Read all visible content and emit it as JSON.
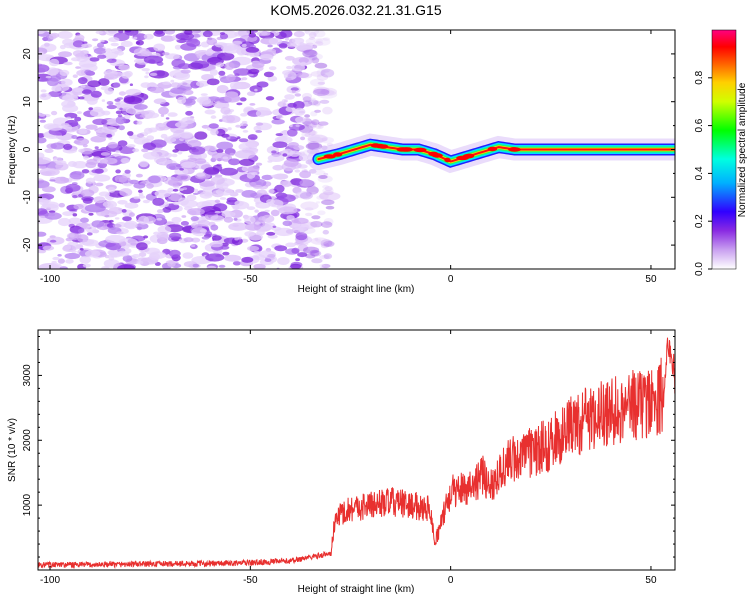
{
  "title": "KOM5.2026.032.21.31.G15",
  "chart_data": [
    {
      "type": "heatmap",
      "xlabel": "Height of straight line (km)",
      "ylabel": "Frequency (Hz)",
      "xlim": [
        -103,
        56
      ],
      "ylim": [
        -25,
        25
      ],
      "x_ticks": [
        -100,
        -50,
        0,
        50
      ],
      "y_ticks": [
        -20,
        -10,
        0,
        10,
        20
      ],
      "colorbar": {
        "label": "Normalized spectral amplitude",
        "range": [
          0.0,
          1.0
        ],
        "ticks": [
          0.0,
          0.2,
          0.4,
          0.6,
          0.8
        ],
        "colors": [
          "#ffffff",
          "#8a2be2",
          "#0000ff",
          "#00ffff",
          "#00ff00",
          "#ffff00",
          "#ff8000",
          "#ff0000",
          "#ff00a0"
        ]
      },
      "noise_region_x": [
        -103,
        -30
      ],
      "ridge": {
        "x": [
          -33,
          -28,
          -24,
          -20,
          -16,
          -12,
          -8,
          -4,
          0,
          4,
          8,
          12,
          16,
          20,
          30,
          40,
          50,
          56
        ],
        "y": [
          -2,
          -1,
          0,
          1,
          0.5,
          0,
          0,
          -1,
          -2.5,
          -1.5,
          -0.5,
          0.5,
          0,
          0,
          0,
          0,
          0,
          0
        ]
      }
    },
    {
      "type": "line",
      "xlabel": "Height of straight line (km)",
      "ylabel": "SNR (10 * v/v)",
      "xlim": [
        -103,
        56
      ],
      "ylim": [
        0,
        3700
      ],
      "x_ticks": [
        -100,
        -50,
        0,
        50
      ],
      "y_ticks": [
        1000,
        2000,
        3000
      ],
      "color": "#e8302f",
      "series": [
        {
          "x": [
            -103,
            -90,
            -80,
            -70,
            -60,
            -50,
            -40,
            -35,
            -30,
            -29,
            -28,
            -25,
            -20,
            -15,
            -10,
            -5,
            -4,
            0,
            5,
            8,
            10,
            12,
            15,
            20,
            25,
            30,
            35,
            40,
            45,
            50,
            53,
            54,
            55,
            56
          ],
          "y": [
            80,
            80,
            90,
            95,
            100,
            110,
            140,
            200,
            250,
            700,
            850,
            950,
            1000,
            1050,
            1000,
            950,
            400,
            1200,
            1300,
            1450,
            1300,
            1500,
            1700,
            1800,
            1950,
            2200,
            2350,
            2450,
            2550,
            2600,
            2700,
            3300,
            3250,
            3000
          ]
        }
      ]
    }
  ]
}
